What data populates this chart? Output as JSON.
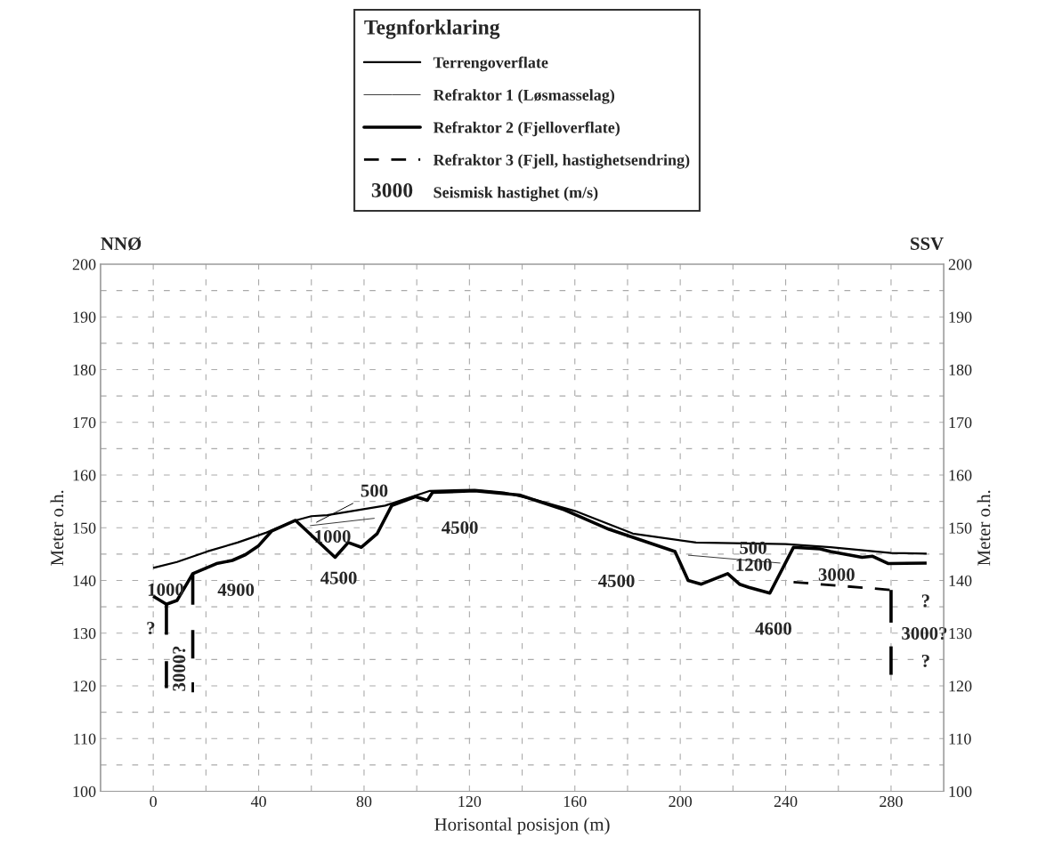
{
  "chart_data": {
    "type": "line",
    "xlabel": "Horisontal posisjon (m)",
    "ylabel": "Meter o.h.",
    "y2label": "Meter o.h.",
    "legend_title": "Tegnforklaring",
    "legend": "top",
    "xlim": [
      -20,
      300
    ],
    "xticks": [
      0,
      40,
      80,
      120,
      160,
      200,
      240,
      280
    ],
    "ylim": [
      100,
      200
    ],
    "yticks": [
      100,
      110,
      120,
      130,
      140,
      150,
      160,
      170,
      180,
      190,
      200
    ],
    "y2lim": [
      100,
      200
    ],
    "y2ticks": [
      100,
      110,
      120,
      130,
      140,
      150,
      160,
      170,
      180,
      190,
      200
    ],
    "grid": true,
    "line_style": "solid",
    "marker": "none",
    "series": [
      {
        "name": "Terrengoverflate",
        "color": "#000000",
        "x": [
          0,
          9,
          20.5,
          32,
          43,
          54,
          60,
          66,
          88,
          105,
          122,
          133,
          145,
          160,
          182,
          206,
          240,
          257,
          280,
          293.5
        ],
        "values": [
          142.4,
          143.5,
          145.5,
          147.2,
          149.1,
          151.4,
          152.2,
          152.4,
          154.2,
          157.0,
          157.2,
          156.7,
          155.3,
          153.2,
          148.9,
          147.2,
          146.9,
          146.3,
          145.2,
          145.1
        ]
      },
      {
        "name": "Refraktor 1 (Løsmasselag)",
        "color": "#333333",
        "x": [
          59.5,
          84
        ],
        "values": [
          150.4,
          151.8
        ]
      },
      {
        "color": "#333333",
        "x": [
          203,
          238
        ],
        "values": [
          144.8,
          143.3
        ]
      },
      {
        "name": "Refraktor 2 (Fjelloverflate)",
        "color": "#000000",
        "x": [
          0,
          5,
          9,
          15,
          24,
          30,
          35,
          40,
          45,
          54,
          69,
          74,
          79,
          85,
          90.5,
          99.5,
          104,
          106,
          122,
          139,
          156,
          173,
          198,
          203,
          208,
          218,
          222.5,
          226,
          234,
          243,
          253,
          257,
          269,
          273,
          279,
          293.5
        ],
        "values": [
          137.0,
          135.5,
          136.2,
          141.3,
          143.2,
          143.8,
          144.9,
          146.6,
          149.4,
          151.4,
          144.4,
          147.2,
          146.3,
          148.9,
          154.2,
          155.9,
          155.2,
          156.7,
          157.0,
          156.2,
          153.4,
          149.7,
          145.5,
          140.0,
          139.3,
          141.3,
          139.3,
          138.7,
          137.6,
          146.3,
          146.0,
          145.5,
          144.4,
          144.6,
          143.2,
          143.3
        ]
      },
      {
        "color": "#000000",
        "x": [
          5,
          5
        ],
        "values": [
          135.5,
          129.7
        ]
      },
      {
        "color": "#000000",
        "x": [
          5,
          5
        ],
        "values": [
          124.7,
          119.6
        ]
      },
      {
        "color": "#000000",
        "x": [
          15,
          15
        ],
        "values": [
          141.3,
          135.4
        ]
      },
      {
        "color": "#000000",
        "x": [
          15,
          15
        ],
        "values": [
          130.6,
          125.2
        ]
      },
      {
        "color": "#000000",
        "x": [
          280,
          280
        ],
        "values": [
          138.2,
          132.0
        ]
      },
      {
        "color": "#000000",
        "x": [
          280,
          280
        ],
        "values": [
          127.5,
          122.1
        ]
      },
      {
        "name": "Refraktor 3 (Fjell, hastighetsendring)",
        "color": "#000000",
        "line_style": "dashed",
        "x": [
          243,
          280
        ],
        "values": [
          139.7,
          138.2
        ]
      },
      {
        "color": "#000000",
        "line_style": "dashed",
        "x": [
          15,
          15
        ],
        "values": [
          120.7,
          118.8
        ]
      }
    ],
    "annotations": [
      "NNØ",
      "SSV",
      "3000",
      "Seismisk hastighet (m/s)",
      {
        "text": "1000",
        "x": 0,
        "y": 142.4
      },
      {
        "text": "4900",
        "x": 30,
        "y": 143.8
      },
      {
        "text": "?",
        "x": 0,
        "y": 137.0
      },
      {
        "text": "3000?",
        "x": 9,
        "y": 136.2
      },
      {
        "text": "500",
        "x": 59.5,
        "y": 150.4
      },
      {
        "text": "1000",
        "x": 84,
        "y": 151.8
      },
      {
        "text": "4500",
        "x": 69,
        "y": 144.4
      },
      {
        "text": "4500",
        "x": 122,
        "y": 157.0
      },
      {
        "text": "4500",
        "x": 173,
        "y": 149.7
      },
      {
        "text": "500",
        "x": 238,
        "y": 143.3
      },
      {
        "text": "1200",
        "x": 226,
        "y": 138.7
      },
      {
        "text": "3000",
        "x": 257,
        "y": 145.5
      },
      {
        "text": "4600",
        "x": 234,
        "y": 137.6
      },
      {
        "text": "3000?",
        "x": 280,
        "y": 132.0
      },
      {
        "text": "?",
        "x": 280,
        "y": 138.2
      },
      {
        "text": "?",
        "x": 280,
        "y": 122.1
      }
    ]
  }
}
